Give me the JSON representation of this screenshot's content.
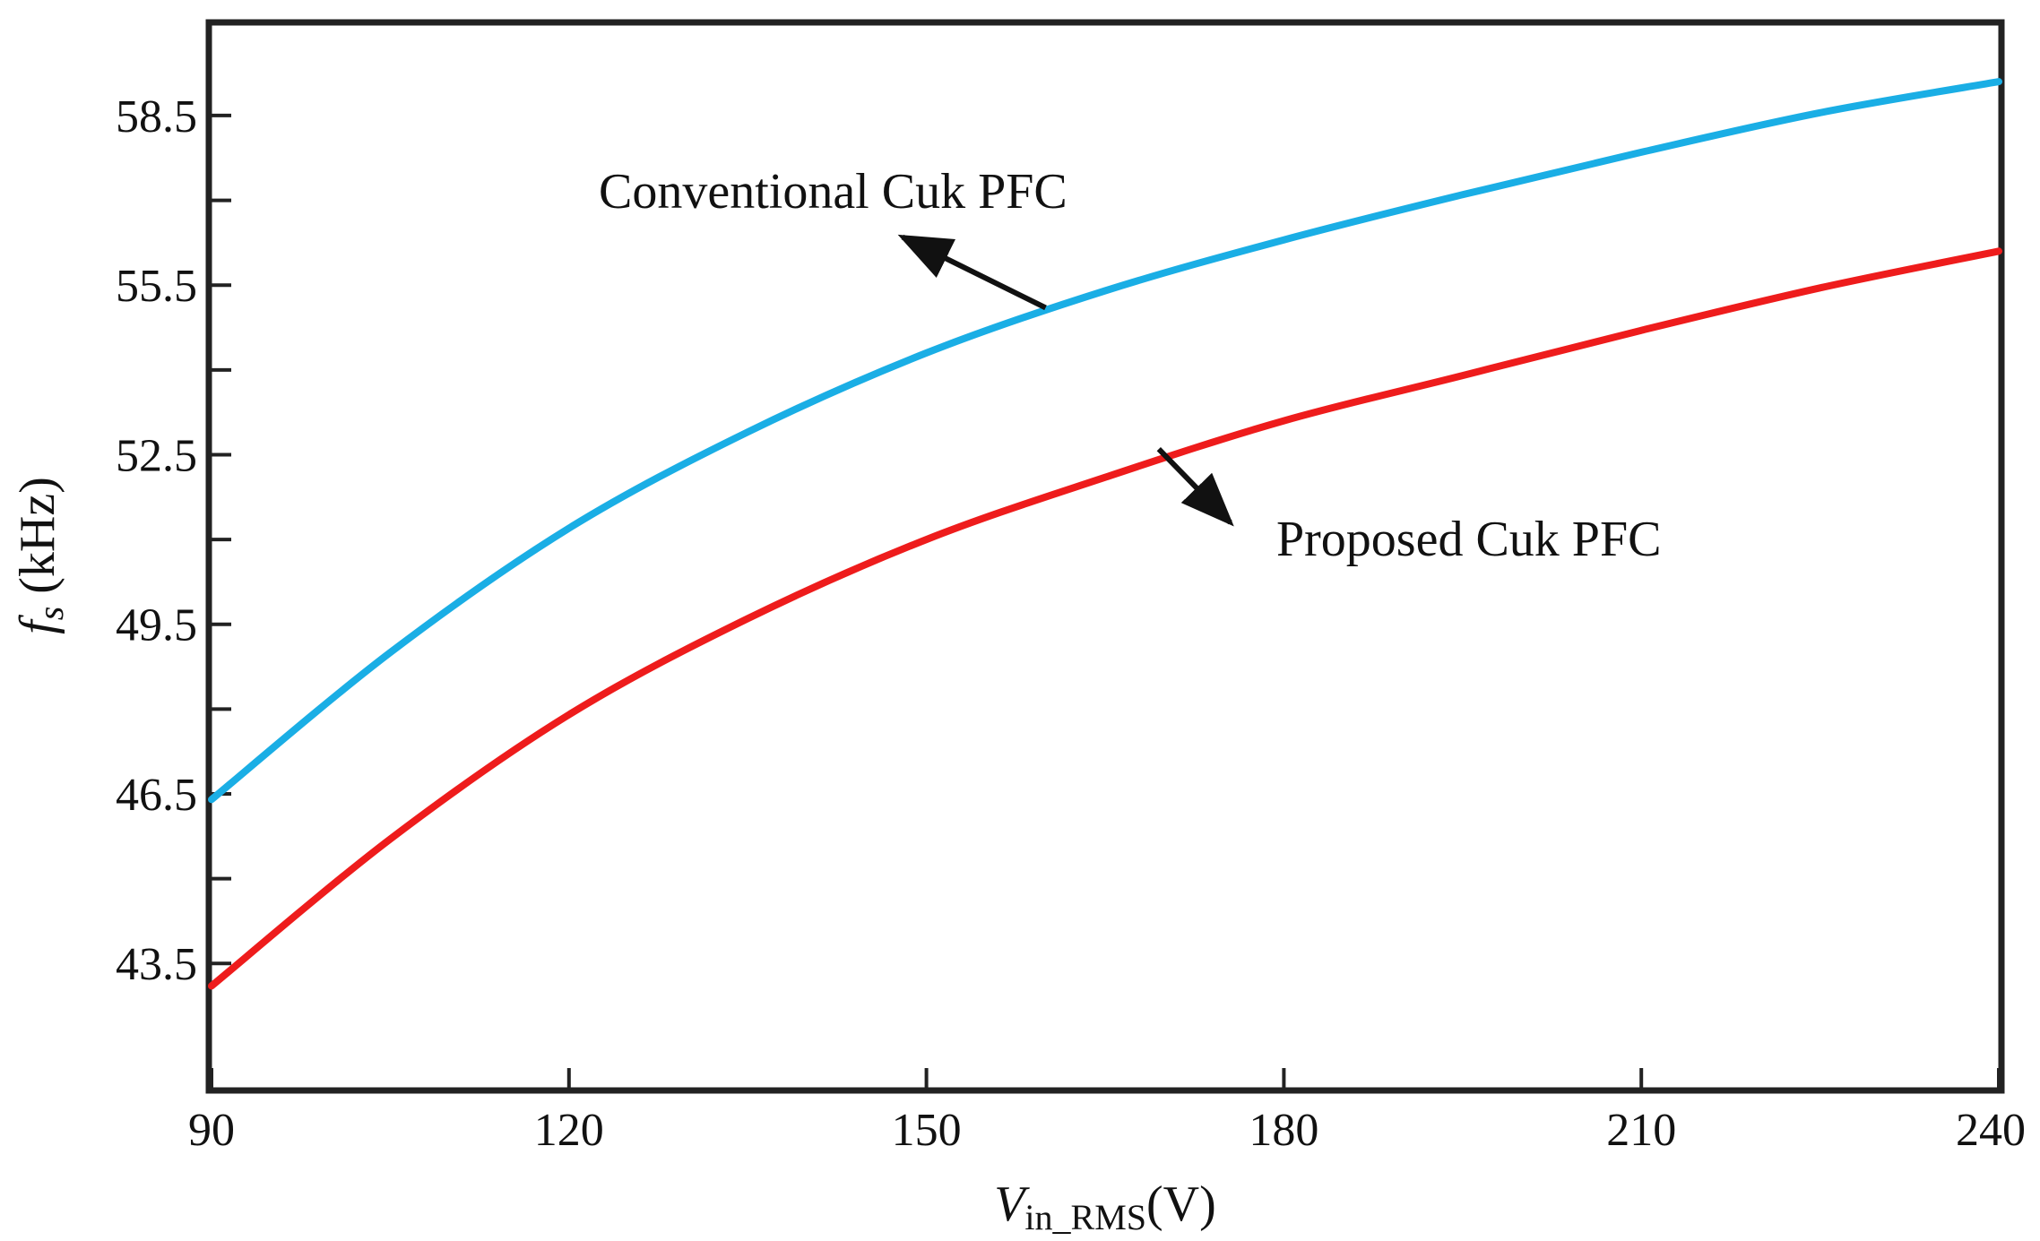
{
  "chart_data": {
    "type": "line",
    "title": "",
    "xlabel": {
      "main": "V",
      "sub": "in_RMS",
      "unit": "(V)"
    },
    "ylabel": {
      "main": "f",
      "sub": "s",
      "unit": " (kHz)"
    },
    "xlim": [
      90,
      240
    ],
    "ylim": [
      41.3,
      60.1
    ],
    "x_ticks": [
      90,
      120,
      150,
      180,
      210,
      240
    ],
    "x_tick_labels": [
      "90",
      "120",
      "150",
      "180",
      "210",
      "240"
    ],
    "y_ticks": [
      43.5,
      46.5,
      49.5,
      52.5,
      55.5,
      58.5
    ],
    "y_tick_labels": [
      "43.5",
      "46.5",
      "49.5",
      "52.5",
      "55.5",
      "58.5"
    ],
    "y_minor_ticks": [
      45,
      48,
      51,
      54,
      57
    ],
    "grid": false,
    "x": [
      90,
      105,
      120,
      135,
      150,
      165,
      180,
      195,
      210,
      225,
      240
    ],
    "series": [
      {
        "name": "Conventional Cuk PFC",
        "color": "#1aaee5",
        "values": [
          46.4,
          49.0,
          51.2,
          52.9,
          54.3,
          55.4,
          56.3,
          57.1,
          57.85,
          58.55,
          59.1
        ]
      },
      {
        "name": "Proposed Cuk PFC",
        "color": "#ee1c1c",
        "values": [
          43.1,
          45.7,
          47.9,
          49.6,
          51.0,
          52.1,
          53.1,
          53.9,
          54.7,
          55.45,
          56.1
        ]
      }
    ],
    "annotations": [
      {
        "text": "Conventional Cuk PFC",
        "series": 0,
        "arrow_from": [
          160,
          55.1
        ],
        "arrow_to": [
          148,
          56.35
        ]
      },
      {
        "text": "Proposed Cuk PFC",
        "series": 1,
        "arrow_from": [
          169.5,
          52.6
        ],
        "arrow_to": [
          175.5,
          51.3
        ]
      }
    ]
  }
}
